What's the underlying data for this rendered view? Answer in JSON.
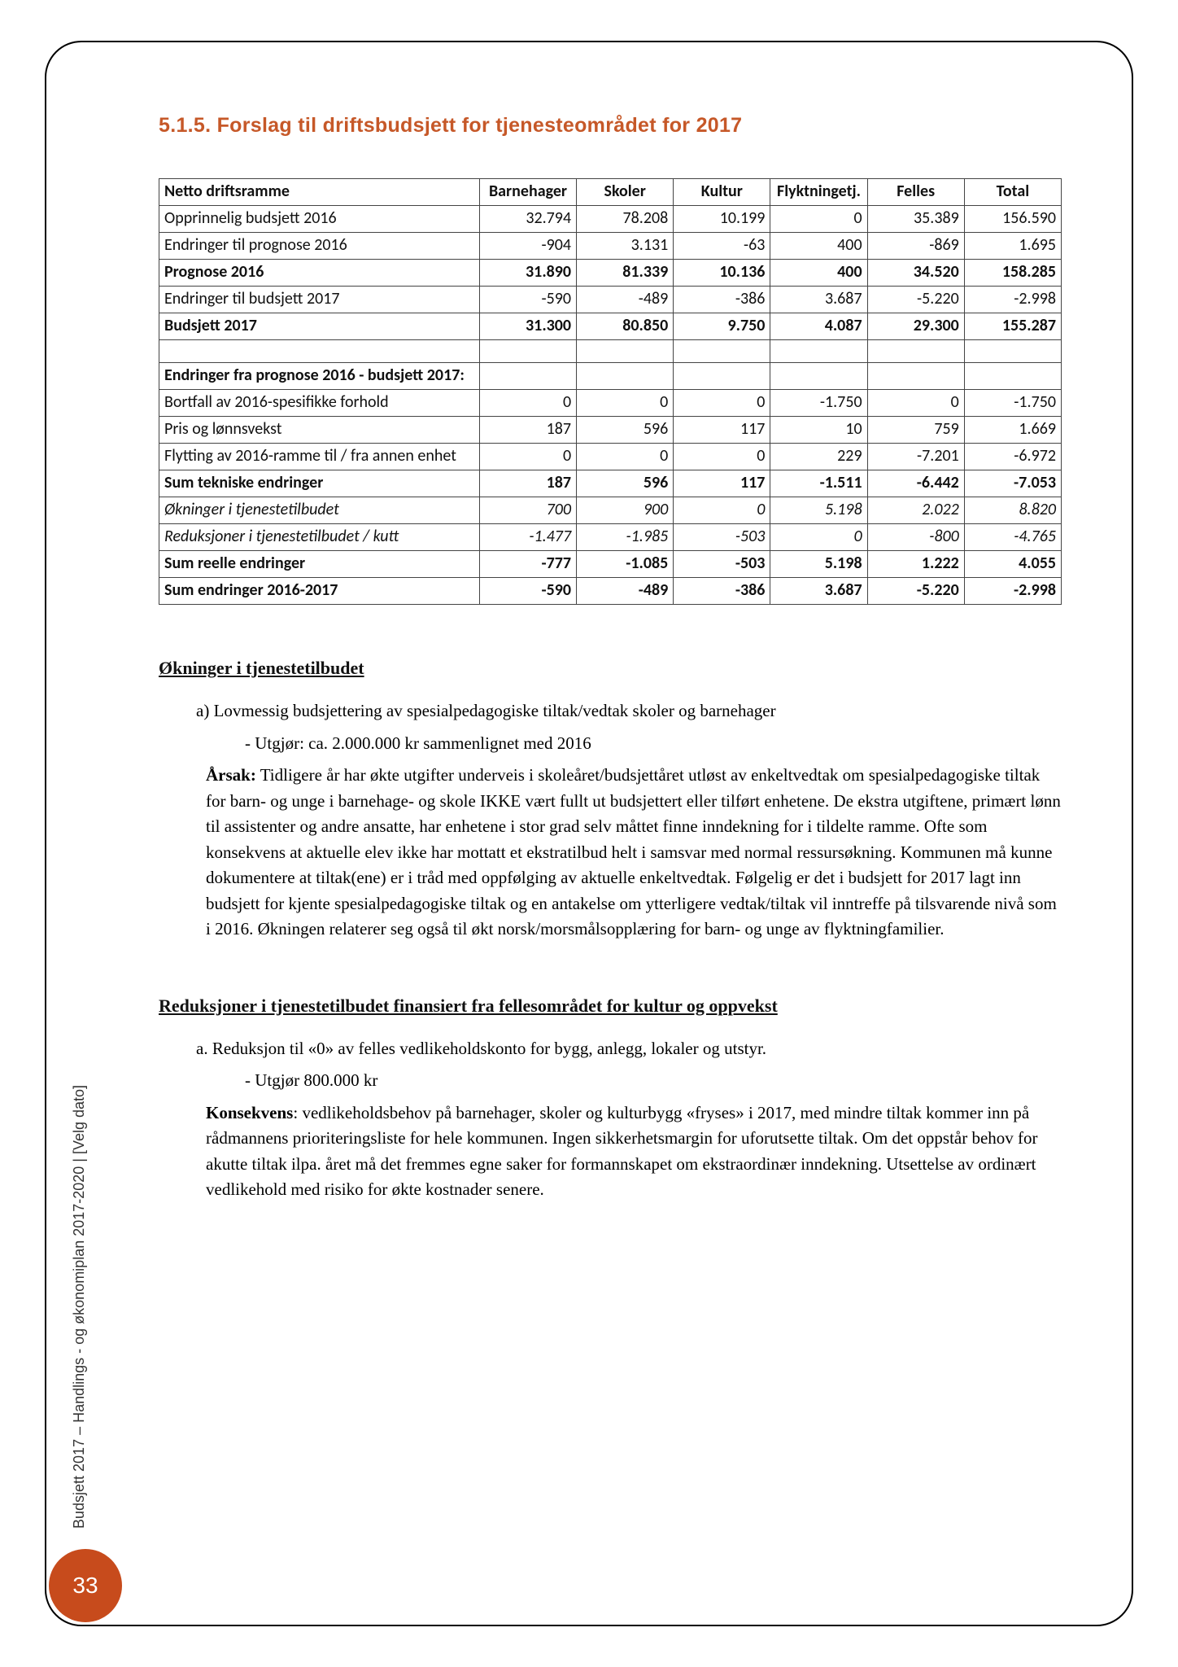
{
  "title": "5.1.5. Forslag til driftsbudsjett for tjenesteområdet for 2017",
  "table": {
    "columns": [
      "Netto driftsramme",
      "Barnehager",
      "Skoler",
      "Kultur",
      "Flyktningetj.",
      "Felles",
      "Total"
    ],
    "rows": [
      {
        "label": "Opprinnelig budsjett 2016",
        "vals": [
          "32.794",
          "78.208",
          "10.199",
          "0",
          "35.389",
          "156.590"
        ],
        "style": ""
      },
      {
        "label": "Endringer til prognose 2016",
        "vals": [
          "-904",
          "3.131",
          "-63",
          "400",
          "-869",
          "1.695"
        ],
        "style": ""
      },
      {
        "label": "Prognose 2016",
        "vals": [
          "31.890",
          "81.339",
          "10.136",
          "400",
          "34.520",
          "158.285"
        ],
        "style": "bold"
      },
      {
        "label": "Endringer til budsjett 2017",
        "vals": [
          "-590",
          "-489",
          "-386",
          "3.687",
          "-5.220",
          "-2.998"
        ],
        "style": ""
      },
      {
        "label": "Budsjett 2017",
        "vals": [
          "31.300",
          "80.850",
          "9.750",
          "4.087",
          "29.300",
          "155.287"
        ],
        "style": "bold"
      }
    ],
    "subhead": "Endringer fra prognose 2016 - budsjett 2017:",
    "rows2": [
      {
        "label": "Bortfall av 2016-spesifikke forhold",
        "vals": [
          "0",
          "0",
          "0",
          "-1.750",
          "0",
          "-1.750"
        ],
        "style": ""
      },
      {
        "label": "Pris og lønnsvekst",
        "vals": [
          "187",
          "596",
          "117",
          "10",
          "759",
          "1.669"
        ],
        "style": ""
      },
      {
        "label": "Flytting av 2016-ramme til / fra annen enhet",
        "vals": [
          "0",
          "0",
          "0",
          "229",
          "-7.201",
          "-6.972"
        ],
        "style": ""
      },
      {
        "label": "Sum tekniske endringer",
        "vals": [
          "187",
          "596",
          "117",
          "-1.511",
          "-6.442",
          "-7.053"
        ],
        "style": "bold"
      },
      {
        "label": "Økninger i tjenestetilbudet",
        "vals": [
          "700",
          "900",
          "0",
          "5.198",
          "2.022",
          "8.820"
        ],
        "style": "italic"
      },
      {
        "label": "Reduksjoner i tjenestetilbudet / kutt",
        "vals": [
          "-1.477",
          "-1.985",
          "-503",
          "0",
          "-800",
          "-4.765"
        ],
        "style": "italic"
      },
      {
        "label": "Sum reelle endringer",
        "vals": [
          "-777",
          "-1.085",
          "-503",
          "5.198",
          "1.222",
          "4.055"
        ],
        "style": "bold"
      },
      {
        "label": "Sum endringer 2016-2017",
        "vals": [
          "-590",
          "-489",
          "-386",
          "3.687",
          "-5.220",
          "-2.998"
        ],
        "style": "bold"
      }
    ]
  },
  "okninger": {
    "heading": "Økninger i tjenestetilbudet",
    "item_a": "a)  Lovmessig budsjettering av spesialpedagogiske tiltak/vedtak skoler og barnehager",
    "utgjor": "- Utgjør: ca. 2.000.000 kr sammenlignet med 2016",
    "arsak_label": "Årsak:",
    "arsak_text": " Tidligere år har økte utgifter underveis i skoleåret/budsjettåret utløst av enkeltvedtak om spesialpedagogiske tiltak for barn- og unge i barnehage- og skole IKKE vært fullt ut budsjettert eller tilført enhetene. De ekstra utgiftene, primært lønn til assistenter og andre ansatte, har enhetene i stor grad selv måttet finne inndekning for i tildelte ramme. Ofte som konsekvens at aktuelle elev ikke har mottatt et ekstratilbud helt i samsvar med normal ressursøkning. Kommunen må kunne dokumentere at tiltak(ene) er i tråd med oppfølging av aktuelle enkeltvedtak. Følgelig er det i budsjett for 2017 lagt inn budsjett for kjente spesialpedagogiske tiltak og en antakelse om ytterligere vedtak/tiltak vil inntreffe på tilsvarende nivå som i 2016. Økningen relaterer seg også til økt norsk/morsmålsopplæring for barn- og unge av flyktningfamilier."
  },
  "reduksjoner": {
    "heading": "Reduksjoner i tjenestetilbudet finansiert fra fellesområdet for kultur og oppvekst",
    "item_a": "a. Reduksjon til «0» av felles vedlikeholdskonto for bygg, anlegg, lokaler og utstyr.",
    "utgjor": "- Utgjør 800.000 kr",
    "kons_label": "Konsekvens",
    "kons_text": ": vedlikeholdsbehov på barnehager, skoler og kulturbygg «fryses» i 2017, med mindre tiltak kommer inn på rådmannens prioriteringsliste for hele kommunen. Ingen sikkerhetsmargin for uforutsette tiltak. Om det oppstår behov for akutte tiltak ilpa. året må det fremmes egne saker for formannskapet om ekstraordinær inndekning. Utsettelse av ordinært vedlikehold med risiko for økte kostnader senere."
  },
  "side_text": "Budsjett 2017 – Handlings - og økonomiplan 2017-2020 |  [Velg dato]",
  "page_number": "33",
  "colors": {
    "accent": "#c65828",
    "badge": "#c74b1c"
  }
}
